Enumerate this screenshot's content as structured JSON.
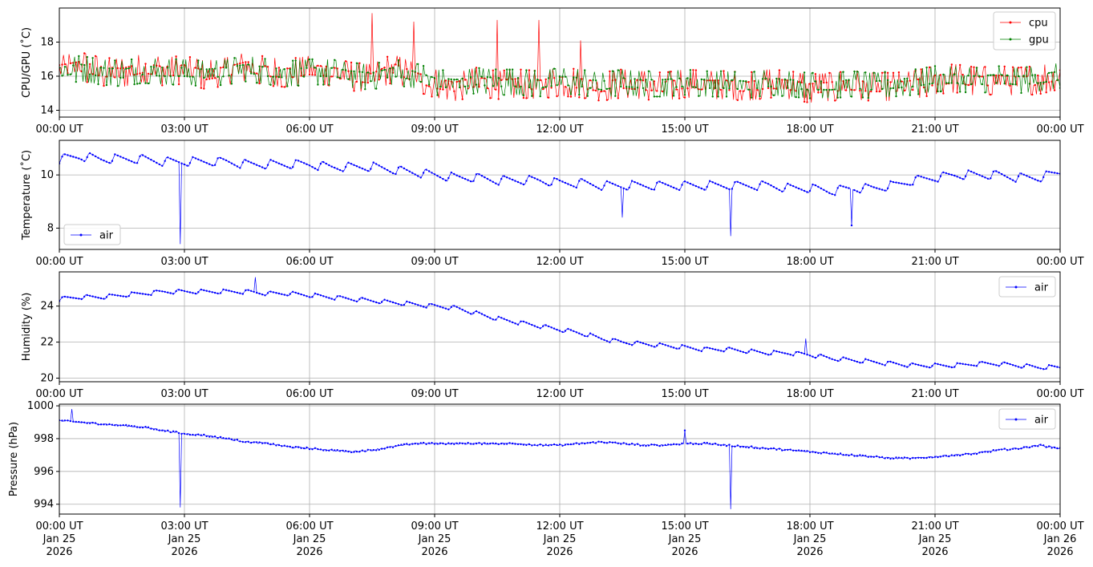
{
  "chart_data": [
    {
      "type": "line",
      "ylabel": "CPU/GPU (˚C)",
      "xlim": [
        "2026-01-25 00:00",
        "2026-01-26 00:00"
      ],
      "ylim": [
        13.6,
        20.0
      ],
      "yticks": [
        14,
        16,
        18
      ],
      "xtick_labels": [
        "00:00 UT",
        "03:00 UT",
        "06:00 UT",
        "09:00 UT",
        "12:00 UT",
        "15:00 UT",
        "18:00 UT",
        "21:00 UT",
        "00:00 UT"
      ],
      "grid": true,
      "legend": "upper right",
      "series": [
        {
          "name": "cpu",
          "color": "#ff0000",
          "x_hours": [
            0,
            0.5,
            1,
            1.5,
            2,
            2.5,
            3,
            3.5,
            4,
            4.5,
            5,
            5.5,
            6,
            6.5,
            7,
            7.5,
            8,
            8.5,
            9,
            9.5,
            10,
            10.5,
            11,
            11.5,
            12,
            12.5,
            13,
            13.5,
            14,
            14.5,
            15,
            15.5,
            16,
            16.5,
            17,
            17.5,
            18,
            18.5,
            19,
            19.5,
            20,
            20.5,
            21,
            21.5,
            22,
            22.5,
            23,
            23.5,
            24
          ],
          "values": [
            16.1,
            16.3,
            16.0,
            15.9,
            16.2,
            16.0,
            16.1,
            15.8,
            16.0,
            16.3,
            16.0,
            15.9,
            16.1,
            16.0,
            15.7,
            15.6,
            16.2,
            15.7,
            15.3,
            15.1,
            15.4,
            15.2,
            15.3,
            15.2,
            15.4,
            15.3,
            15.1,
            15.3,
            15.2,
            15.1,
            15.3,
            15.2,
            15.2,
            15.1,
            15.3,
            15.2,
            15.0,
            15.1,
            15.2,
            15.1,
            15.1,
            15.2,
            15.5,
            15.6,
            15.4,
            15.5,
            15.4,
            15.5,
            15.8
          ]
        },
        {
          "name": "gpu",
          "color": "#008000",
          "x_hours": [
            0,
            0.5,
            1,
            1.5,
            2,
            2.5,
            3,
            3.5,
            4,
            4.5,
            5,
            5.5,
            6,
            6.5,
            7,
            7.5,
            8,
            8.5,
            9,
            9.5,
            10,
            10.5,
            11,
            11.5,
            12,
            12.5,
            13,
            13.5,
            14,
            14.5,
            15,
            15.5,
            16,
            16.5,
            17,
            17.5,
            18,
            18.5,
            19,
            19.5,
            20,
            20.5,
            21,
            21.5,
            22,
            22.5,
            23,
            23.5,
            24
          ],
          "values": [
            16.0,
            16.2,
            16.0,
            15.9,
            16.1,
            16.0,
            16.0,
            15.9,
            16.0,
            16.2,
            16.0,
            15.9,
            16.0,
            16.0,
            15.8,
            15.7,
            16.0,
            15.8,
            15.4,
            15.3,
            15.5,
            15.4,
            15.4,
            15.3,
            15.5,
            15.4,
            15.2,
            15.4,
            15.3,
            15.3,
            15.4,
            15.3,
            15.3,
            15.2,
            15.4,
            15.3,
            15.2,
            15.2,
            15.3,
            15.2,
            15.3,
            15.4,
            15.6,
            15.6,
            15.5,
            15.6,
            15.5,
            15.6,
            15.8
          ]
        }
      ],
      "spikes": [
        {
          "x_hour": 7.5,
          "value": 19.7
        },
        {
          "x_hour": 8.5,
          "value": 19.2
        },
        {
          "x_hour": 10.5,
          "value": 19.3
        },
        {
          "x_hour": 11.5,
          "value": 19.3
        },
        {
          "x_hour": 12.5,
          "value": 18.1
        }
      ]
    },
    {
      "type": "line",
      "ylabel": "Temperature (˚C)",
      "xlim": [
        "2026-01-25 00:00",
        "2026-01-26 00:00"
      ],
      "ylim": [
        7.2,
        11.3
      ],
      "yticks": [
        8,
        10
      ],
      "xtick_labels": [
        "00:00 UT",
        "03:00 UT",
        "06:00 UT",
        "09:00 UT",
        "12:00 UT",
        "15:00 UT",
        "18:00 UT",
        "21:00 UT",
        "00:00 UT"
      ],
      "grid": true,
      "legend": "lower left",
      "series": [
        {
          "name": "air",
          "color": "#0000ff",
          "x_hours": [
            0,
            0.5,
            1,
            1.5,
            2,
            2.5,
            3,
            3.5,
            4,
            4.5,
            5,
            5.5,
            6,
            6.5,
            7,
            7.5,
            8,
            8.5,
            9,
            9.5,
            10,
            10.5,
            11,
            11.5,
            12,
            12.5,
            13,
            13.5,
            14,
            14.5,
            15,
            15.5,
            16,
            16.5,
            17,
            17.5,
            18,
            18.5,
            19,
            19.5,
            20,
            20.5,
            21,
            21.5,
            22,
            22.5,
            23,
            23.5,
            24
          ],
          "values": [
            10.6,
            10.7,
            10.6,
            10.6,
            10.6,
            10.5,
            10.5,
            10.5,
            10.5,
            10.4,
            10.4,
            10.4,
            10.4,
            10.3,
            10.3,
            10.3,
            10.2,
            10.1,
            10.0,
            9.9,
            9.9,
            9.8,
            9.8,
            9.8,
            9.7,
            9.7,
            9.6,
            9.6,
            9.6,
            9.6,
            9.6,
            9.6,
            9.6,
            9.6,
            9.6,
            9.5,
            9.5,
            9.4,
            9.5,
            9.5,
            9.6,
            9.8,
            9.9,
            10.0,
            10.0,
            10.0,
            9.9,
            9.9,
            10.1
          ]
        }
      ],
      "spikes": [
        {
          "x_hour": 2.9,
          "value": 7.4
        },
        {
          "x_hour": 13.5,
          "value": 8.4
        },
        {
          "x_hour": 16.1,
          "value": 7.7
        },
        {
          "x_hour": 19.0,
          "value": 8.1
        }
      ]
    },
    {
      "type": "line",
      "ylabel": "Humidity (%)",
      "xlim": [
        "2026-01-25 00:00",
        "2026-01-26 00:00"
      ],
      "ylim": [
        19.8,
        25.9
      ],
      "yticks": [
        20,
        22,
        24
      ],
      "xtick_labels": [
        "00:00 UT",
        "03:00 UT",
        "06:00 UT",
        "09:00 UT",
        "12:00 UT",
        "15:00 UT",
        "18:00 UT",
        "21:00 UT",
        "00:00 UT"
      ],
      "grid": true,
      "legend": "upper right",
      "series": [
        {
          "name": "air",
          "color": "#0000ff",
          "x_hours": [
            0,
            0.5,
            1,
            1.5,
            2,
            2.5,
            3,
            3.5,
            4,
            4.5,
            5,
            5.5,
            6,
            6.5,
            7,
            7.5,
            8,
            8.5,
            9,
            9.5,
            10,
            10.5,
            11,
            11.5,
            12,
            12.5,
            13,
            13.5,
            14,
            14.5,
            15,
            15.5,
            16,
            16.5,
            17,
            17.5,
            18,
            18.5,
            19,
            19.5,
            20,
            20.5,
            21,
            21.5,
            22,
            22.5,
            23,
            23.5,
            24
          ],
          "values": [
            24.4,
            24.5,
            24.5,
            24.6,
            24.7,
            24.8,
            24.8,
            24.8,
            24.8,
            24.8,
            24.7,
            24.7,
            24.6,
            24.5,
            24.4,
            24.3,
            24.2,
            24.1,
            24.0,
            23.9,
            23.6,
            23.3,
            23.1,
            22.9,
            22.7,
            22.5,
            22.2,
            22.0,
            21.9,
            21.8,
            21.7,
            21.6,
            21.6,
            21.5,
            21.4,
            21.4,
            21.3,
            21.1,
            21.0,
            20.9,
            20.8,
            20.7,
            20.7,
            20.7,
            20.8,
            20.8,
            20.7,
            20.6,
            20.6
          ]
        }
      ],
      "spikes": [
        {
          "x_hour": 4.7,
          "value": 25.6
        },
        {
          "x_hour": 17.9,
          "value": 22.2
        }
      ]
    },
    {
      "type": "line",
      "ylabel": "Pressure (hPa)",
      "xlim": [
        "2026-01-25 00:00",
        "2026-01-26 00:00"
      ],
      "ylim": [
        993.4,
        1000.1
      ],
      "yticks": [
        994,
        996,
        998,
        1000
      ],
      "xtick_labels": [
        "00:00 UT\nJan 25\n2026",
        "03:00 UT\nJan 25\n2026",
        "06:00 UT\nJan 25\n2026",
        "09:00 UT\nJan 25\n2026",
        "12:00 UT\nJan 25\n2026",
        "15:00 UT\nJan 25\n2026",
        "18:00 UT\nJan 25\n2026",
        "21:00 UT\nJan 25\n2026",
        "00:00 UT\nJan 26\n2026"
      ],
      "grid": true,
      "legend": "upper right",
      "series": [
        {
          "name": "air",
          "color": "#0000ff",
          "x_hours": [
            0,
            0.5,
            1,
            1.5,
            2,
            2.5,
            3,
            3.5,
            4,
            4.5,
            5,
            5.5,
            6,
            6.5,
            7,
            7.5,
            8,
            8.5,
            9,
            9.5,
            10,
            10.5,
            11,
            11.5,
            12,
            12.5,
            13,
            13.5,
            14,
            14.5,
            15,
            15.5,
            16,
            16.5,
            17,
            17.5,
            18,
            18.5,
            19,
            19.5,
            20,
            20.5,
            21,
            21.5,
            22,
            22.5,
            23,
            23.5,
            24
          ],
          "values": [
            999.1,
            999.0,
            998.9,
            998.8,
            998.7,
            998.5,
            998.3,
            998.2,
            998.0,
            997.8,
            997.7,
            997.5,
            997.4,
            997.3,
            997.2,
            997.3,
            997.5,
            997.7,
            997.7,
            997.7,
            997.7,
            997.7,
            997.7,
            997.6,
            997.6,
            997.7,
            997.8,
            997.7,
            997.6,
            997.6,
            997.7,
            997.7,
            997.6,
            997.5,
            997.4,
            997.3,
            997.2,
            997.1,
            997.0,
            996.9,
            996.8,
            996.8,
            996.9,
            997.0,
            997.1,
            997.3,
            997.4,
            997.6,
            997.4
          ]
        }
      ],
      "spikes": [
        {
          "x_hour": 0.3,
          "value": 999.8
        },
        {
          "x_hour": 2.9,
          "value": 993.8
        },
        {
          "x_hour": 16.1,
          "value": 993.7
        },
        {
          "x_hour": 15.0,
          "value": 998.5
        }
      ]
    }
  ]
}
